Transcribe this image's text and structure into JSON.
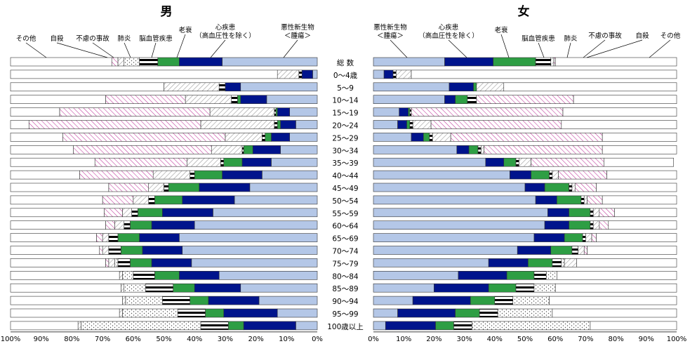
{
  "chart_data": {
    "type": "bar",
    "stacked": "100%",
    "categories": [
      "総 数",
      "0～4歳",
      "5～9",
      "10～14",
      "15～19",
      "20～24",
      "25～29",
      "30～34",
      "35～39",
      "40～44",
      "45～49",
      "50～54",
      "55～59",
      "60～64",
      "65～69",
      "70～74",
      "75～79",
      "80～84",
      "85～89",
      "90～94",
      "95～99",
      "100歳以上"
    ],
    "x_ticks": [
      "100%",
      "90%",
      "80%",
      "70%",
      "60%",
      "50%",
      "40%",
      "30%",
      "20%",
      "10%",
      "0%"
    ],
    "x_ticks_female": [
      "0%",
      "10%",
      "20%",
      "30%",
      "40%",
      "50%",
      "60%",
      "70%",
      "80%",
      "90%",
      "100%"
    ],
    "grid": false,
    "series_order": [
      "悪性新生物",
      "心疾患",
      "脳血管疾患",
      "肺炎",
      "老衰",
      "不慮の事故",
      "自殺",
      "その他"
    ],
    "series_colors": {
      "悪性新生物": "#b4c7e7",
      "心疾患": "#00148c",
      "脳血管疾患": "#2e9e44",
      "肺炎": "stripes-horizontal",
      "老衰": "dots",
      "不慮の事故": "diagonal-gray",
      "自殺": "diagonal-pink",
      "その他": "#ffffff"
    },
    "panels": [
      {
        "title": "男",
        "direction": "right-to-left",
        "callouts": [
          {
            "lines": [
              "悪性新生物",
              "＜腫瘍＞"
            ]
          },
          {
            "lines": [
              "心疾患",
              "（高血圧性を除く）"
            ]
          },
          {
            "lines": [
              "老衰"
            ]
          },
          {
            "lines": [
              "脳血管疾患"
            ]
          },
          {
            "lines": [
              "肺炎"
            ]
          },
          {
            "lines": [
              "不慮の事故"
            ]
          },
          {
            "lines": [
              "自殺"
            ]
          },
          {
            "lines": [
              "その他"
            ]
          }
        ],
        "series": [
          {
            "name": "悪性新生物",
            "values": [
              31,
              1.5,
              25,
              16.5,
              9,
              7,
              9,
              12,
              15,
              18,
              22,
              27,
              34,
              40,
              45,
              44,
              41,
              32,
              25,
              19,
              13,
              7
            ]
          },
          {
            "name": "心疾患",
            "values": [
              14,
              3.5,
              5,
              8.5,
              4,
              5,
              6,
              9,
              9.5,
              13,
              16.5,
              17,
              16.5,
              14,
              13,
              13,
              13,
              13,
              15,
              16.5,
              17.5,
              17
            ]
          },
          {
            "name": "脳血管疾患",
            "values": [
              7,
              0,
              0,
              1,
              0.5,
              1,
              2,
              3,
              6,
              9,
              10,
              9,
              8,
              7,
              7,
              7,
              7,
              8,
              7,
              6,
              6,
              5
            ]
          },
          {
            "name": "肺炎",
            "values": [
              6,
              1,
              2,
              2,
              0.5,
              1,
              1,
              0.5,
              1,
              1.5,
              1.5,
              2,
              2,
              2,
              3,
              4,
              4,
              7,
              9,
              9,
              9,
              9
            ]
          },
          {
            "name": "老衰",
            "values": [
              5,
              0,
              0,
              0,
              0,
              0,
              0,
              0,
              0,
              0,
              0,
              0,
              0,
              0,
              0,
              0,
              1,
              3.5,
              7,
              12,
              18,
              39
            ]
          },
          {
            "name": "不慮の事故",
            "values": [
              2,
              7,
              18,
              15,
              21,
              24,
              12,
              10,
              11,
              12,
              5,
              5,
              3,
              3,
              2,
              2,
              2,
              1,
              1,
              1,
              1,
              1
            ]
          },
          {
            "name": "自殺",
            "values": [
              2,
              0,
              0,
              26,
              49,
              56,
              53,
              45,
              30,
              24,
              13,
              10,
              6,
              3,
              2,
              1,
              1,
              0,
              0,
              0,
              0,
              0
            ]
          },
          {
            "name": "その他",
            "values": [
              33,
              87,
              50,
              31,
              16,
              6,
              17,
              20.5,
              27.5,
              22.5,
              32,
              30,
              30.5,
              31,
              28,
              29,
              31,
              35.5,
              36,
              36.5,
              35.5,
              22
            ]
          }
        ]
      },
      {
        "title": "女",
        "direction": "left-to-right",
        "callouts": [
          {
            "lines": [
              "悪性新生物",
              "＜腫瘍＞"
            ]
          },
          {
            "lines": [
              "心疾患",
              "（高血圧性を除く）"
            ]
          },
          {
            "lines": [
              "老衰"
            ]
          },
          {
            "lines": [
              "脳血管疾患"
            ]
          },
          {
            "lines": [
              "肺炎"
            ]
          },
          {
            "lines": [
              "不慮の事故"
            ]
          },
          {
            "lines": [
              "自殺"
            ]
          },
          {
            "lines": [
              "その他"
            ]
          }
        ],
        "series": [
          {
            "name": "悪性新生物",
            "values": [
              23.5,
              3.5,
              25,
              23.5,
              8.5,
              8,
              12.5,
              27.5,
              37,
              45,
              50,
              53.5,
              57.5,
              56.5,
              53,
              47.5,
              38,
              28,
              20,
              13,
              8,
              4
            ]
          },
          {
            "name": "心疾患",
            "values": [
              16,
              3,
              8,
              3.5,
              3,
              3,
              4,
              4,
              6,
              7,
              6.5,
              7,
              7,
              8,
              10,
              11,
              13,
              16,
              18,
              19,
              19,
              16.5
            ]
          },
          {
            "name": "脳血管疾患",
            "values": [
              14,
              0,
              1,
              4,
              0.5,
              1,
              2,
              3,
              4,
              6,
              8,
              8,
              7,
              7,
              6,
              7,
              8,
              9,
              9,
              8,
              8,
              6
            ]
          },
          {
            "name": "肺炎",
            "values": [
              5,
              1,
              0,
              3,
              0.5,
              1,
              1,
              1,
              1,
              1,
              1,
              1,
              1,
              1,
              1,
              2,
              3,
              4,
              6,
              6,
              6,
              6
            ]
          },
          {
            "name": "老衰",
            "values": [
              0,
              0,
              0,
              0,
              0,
              0,
              0,
              0,
              0,
              0,
              0,
              0,
              0,
              0,
              0,
              0,
              1,
              3.5,
              7,
              12,
              18,
              39
            ]
          },
          {
            "name": "不慮の事故",
            "values": [
              1,
              5,
              9,
              0,
              0,
              6,
              6,
              1,
              4,
              2,
              1,
              1,
              2,
              2,
              2,
              2,
              4,
              0,
              0,
              0,
              0,
              0
            ]
          },
          {
            "name": "自殺",
            "values": [
              0.5,
              0,
              0,
              32,
              50,
              43,
              50,
              39,
              24,
              16,
              7,
              5,
              5,
              3,
              1.5,
              1,
              0,
              0,
              0,
              0,
              0,
              0
            ]
          },
          {
            "name": "その他",
            "values": [
              40,
              87.5,
              57,
              34,
              37.5,
              38,
              24.5,
              24.5,
              23,
              23,
              26.5,
              24.5,
              20.5,
              22.5,
              26.5,
              29.5,
              33,
              39.5,
              40,
              42,
              41,
              28.5
            ]
          }
        ]
      }
    ]
  }
}
